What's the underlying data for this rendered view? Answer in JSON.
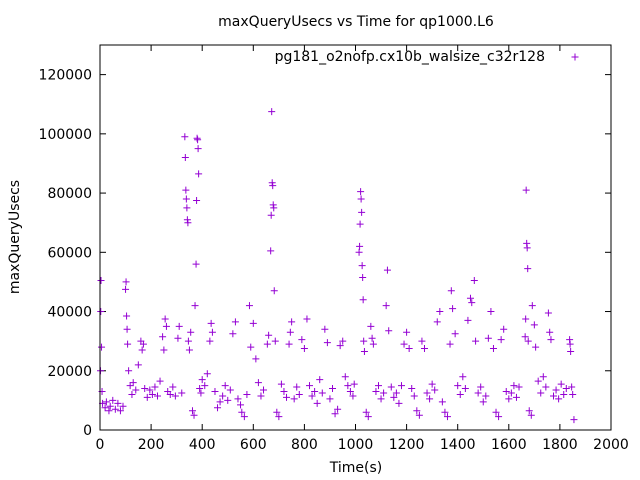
{
  "chart_data": {
    "type": "scatter",
    "title": "maxQueryUsecs vs Time for qp1000.L6",
    "xlabel": "Time(s)",
    "ylabel": "maxQueryUsecs",
    "xlim": [
      0,
      2000
    ],
    "ylim": [
      0,
      130000
    ],
    "x_ticks": [
      "0",
      "200",
      "400",
      "600",
      "800",
      "1000",
      "1200",
      "1400",
      "1600",
      "1800",
      "2000"
    ],
    "y_ticks": [
      "0",
      "20000",
      "40000",
      "60000",
      "80000",
      "100000",
      "120000"
    ],
    "grid": false,
    "legend_position": "top-right",
    "marker_color": "#9400d3",
    "series": [
      {
        "name": "pg181_o2nofp.cx10b_walsize_c32r128",
        "points": [
          [
            2,
            20000
          ],
          [
            3,
            40000
          ],
          [
            4,
            50500
          ],
          [
            6,
            28000
          ],
          [
            8,
            13000
          ],
          [
            10,
            9000
          ],
          [
            20,
            7500
          ],
          [
            25,
            9500
          ],
          [
            35,
            6500
          ],
          [
            40,
            8000
          ],
          [
            50,
            10000
          ],
          [
            60,
            7000
          ],
          [
            70,
            9000
          ],
          [
            80,
            6500
          ],
          [
            90,
            8000
          ],
          [
            100,
            47500
          ],
          [
            102,
            50000
          ],
          [
            104,
            38500
          ],
          [
            106,
            34000
          ],
          [
            108,
            29000
          ],
          [
            112,
            20000
          ],
          [
            118,
            15000
          ],
          [
            125,
            12000
          ],
          [
            130,
            16000
          ],
          [
            140,
            13500
          ],
          [
            150,
            22000
          ],
          [
            160,
            30000
          ],
          [
            165,
            27000
          ],
          [
            170,
            29000
          ],
          [
            175,
            14000
          ],
          [
            185,
            11000
          ],
          [
            195,
            13500
          ],
          [
            205,
            12000
          ],
          [
            215,
            14500
          ],
          [
            225,
            11500
          ],
          [
            235,
            16500
          ],
          [
            245,
            31500
          ],
          [
            250,
            27000
          ],
          [
            255,
            37500
          ],
          [
            260,
            35000
          ],
          [
            265,
            13000
          ],
          [
            275,
            12000
          ],
          [
            285,
            14500
          ],
          [
            295,
            11500
          ],
          [
            305,
            31000
          ],
          [
            310,
            35000
          ],
          [
            320,
            12500
          ],
          [
            332,
            99000
          ],
          [
            334,
            92000
          ],
          [
            336,
            81000
          ],
          [
            338,
            78000
          ],
          [
            340,
            75000
          ],
          [
            342,
            71000
          ],
          [
            344,
            70000
          ],
          [
            346,
            30000
          ],
          [
            350,
            27000
          ],
          [
            355,
            33000
          ],
          [
            362,
            6500
          ],
          [
            368,
            5000
          ],
          [
            380,
            98500
          ],
          [
            382,
            98000
          ],
          [
            384,
            95000
          ],
          [
            386,
            86500
          ],
          [
            378,
            77500
          ],
          [
            376,
            56000
          ],
          [
            372,
            42000
          ],
          [
            390,
            14000
          ],
          [
            395,
            12500
          ],
          [
            400,
            17000
          ],
          [
            410,
            15000
          ],
          [
            420,
            19000
          ],
          [
            430,
            30000
          ],
          [
            435,
            36000
          ],
          [
            440,
            33000
          ],
          [
            450,
            13000
          ],
          [
            460,
            7500
          ],
          [
            470,
            9500
          ],
          [
            480,
            11500
          ],
          [
            490,
            15000
          ],
          [
            500,
            10000
          ],
          [
            510,
            13500
          ],
          [
            520,
            32500
          ],
          [
            530,
            36500
          ],
          [
            540,
            10500
          ],
          [
            550,
            8500
          ],
          [
            555,
            6000
          ],
          [
            565,
            4500
          ],
          [
            575,
            12000
          ],
          [
            585,
            42000
          ],
          [
            590,
            28000
          ],
          [
            600,
            36000
          ],
          [
            610,
            24000
          ],
          [
            620,
            16000
          ],
          [
            630,
            11500
          ],
          [
            640,
            13500
          ],
          [
            655,
            29000
          ],
          [
            660,
            32000
          ],
          [
            672,
            107500
          ],
          [
            674,
            83500
          ],
          [
            676,
            82500
          ],
          [
            678,
            76000
          ],
          [
            680,
            75000
          ],
          [
            670,
            72500
          ],
          [
            668,
            60500
          ],
          [
            682,
            47000
          ],
          [
            686,
            30000
          ],
          [
            692,
            6000
          ],
          [
            700,
            4500
          ],
          [
            710,
            15500
          ],
          [
            720,
            13000
          ],
          [
            730,
            11000
          ],
          [
            740,
            29000
          ],
          [
            745,
            33000
          ],
          [
            750,
            36500
          ],
          [
            760,
            10500
          ],
          [
            770,
            14500
          ],
          [
            780,
            12000
          ],
          [
            790,
            30500
          ],
          [
            800,
            27500
          ],
          [
            810,
            37500
          ],
          [
            820,
            15000
          ],
          [
            830,
            11500
          ],
          [
            840,
            13000
          ],
          [
            850,
            9000
          ],
          [
            860,
            17000
          ],
          [
            870,
            12500
          ],
          [
            880,
            34000
          ],
          [
            890,
            29500
          ],
          [
            900,
            10500
          ],
          [
            910,
            14000
          ],
          [
            920,
            5500
          ],
          [
            930,
            7000
          ],
          [
            940,
            28500
          ],
          [
            950,
            30000
          ],
          [
            960,
            18000
          ],
          [
            970,
            15000
          ],
          [
            980,
            13000
          ],
          [
            990,
            11500
          ],
          [
            995,
            15500
          ],
          [
            1020,
            80500
          ],
          [
            1022,
            78000
          ],
          [
            1024,
            73500
          ],
          [
            1018,
            69500
          ],
          [
            1016,
            62000
          ],
          [
            1014,
            60000
          ],
          [
            1026,
            55500
          ],
          [
            1028,
            51500
          ],
          [
            1030,
            44000
          ],
          [
            1032,
            30000
          ],
          [
            1035,
            26500
          ],
          [
            1042,
            6000
          ],
          [
            1050,
            4500
          ],
          [
            1060,
            35000
          ],
          [
            1065,
            31000
          ],
          [
            1070,
            29000
          ],
          [
            1080,
            13000
          ],
          [
            1090,
            15000
          ],
          [
            1100,
            10500
          ],
          [
            1110,
            12500
          ],
          [
            1120,
            42000
          ],
          [
            1125,
            54000
          ],
          [
            1130,
            33500
          ],
          [
            1140,
            14500
          ],
          [
            1150,
            11000
          ],
          [
            1160,
            12500
          ],
          [
            1170,
            9000
          ],
          [
            1180,
            15000
          ],
          [
            1190,
            29000
          ],
          [
            1200,
            33000
          ],
          [
            1210,
            27500
          ],
          [
            1220,
            14000
          ],
          [
            1230,
            11500
          ],
          [
            1240,
            6500
          ],
          [
            1250,
            5000
          ],
          [
            1260,
            30000
          ],
          [
            1270,
            27500
          ],
          [
            1280,
            12500
          ],
          [
            1290,
            10500
          ],
          [
            1300,
            15500
          ],
          [
            1310,
            13500
          ],
          [
            1320,
            36500
          ],
          [
            1330,
            40000
          ],
          [
            1340,
            9500
          ],
          [
            1350,
            6000
          ],
          [
            1360,
            4500
          ],
          [
            1370,
            29000
          ],
          [
            1375,
            47000
          ],
          [
            1380,
            41000
          ],
          [
            1390,
            32500
          ],
          [
            1400,
            15000
          ],
          [
            1410,
            12000
          ],
          [
            1420,
            18000
          ],
          [
            1430,
            14000
          ],
          [
            1440,
            37000
          ],
          [
            1450,
            44500
          ],
          [
            1455,
            43000
          ],
          [
            1465,
            50500
          ],
          [
            1470,
            30000
          ],
          [
            1480,
            12500
          ],
          [
            1490,
            14500
          ],
          [
            1500,
            9500
          ],
          [
            1510,
            11500
          ],
          [
            1520,
            31000
          ],
          [
            1530,
            40000
          ],
          [
            1540,
            27500
          ],
          [
            1550,
            6000
          ],
          [
            1560,
            4500
          ],
          [
            1570,
            30500
          ],
          [
            1580,
            34000
          ],
          [
            1590,
            13000
          ],
          [
            1600,
            10500
          ],
          [
            1610,
            12500
          ],
          [
            1620,
            15000
          ],
          [
            1630,
            11000
          ],
          [
            1640,
            14500
          ],
          [
            1668,
            81000
          ],
          [
            1670,
            63000
          ],
          [
            1672,
            61500
          ],
          [
            1674,
            54500
          ],
          [
            1666,
            37500
          ],
          [
            1664,
            31500
          ],
          [
            1676,
            30000
          ],
          [
            1680,
            6500
          ],
          [
            1688,
            5000
          ],
          [
            1692,
            42000
          ],
          [
            1700,
            35500
          ],
          [
            1705,
            28000
          ],
          [
            1715,
            16500
          ],
          [
            1725,
            12500
          ],
          [
            1735,
            18000
          ],
          [
            1745,
            14500
          ],
          [
            1755,
            39500
          ],
          [
            1760,
            33000
          ],
          [
            1765,
            30500
          ],
          [
            1775,
            11500
          ],
          [
            1785,
            13500
          ],
          [
            1795,
            10500
          ],
          [
            1805,
            15500
          ],
          [
            1815,
            12000
          ],
          [
            1825,
            14000
          ],
          [
            1838,
            30500
          ],
          [
            1840,
            29000
          ],
          [
            1842,
            26500
          ],
          [
            1846,
            14500
          ],
          [
            1850,
            12000
          ],
          [
            1855,
            3500
          ]
        ]
      }
    ]
  }
}
